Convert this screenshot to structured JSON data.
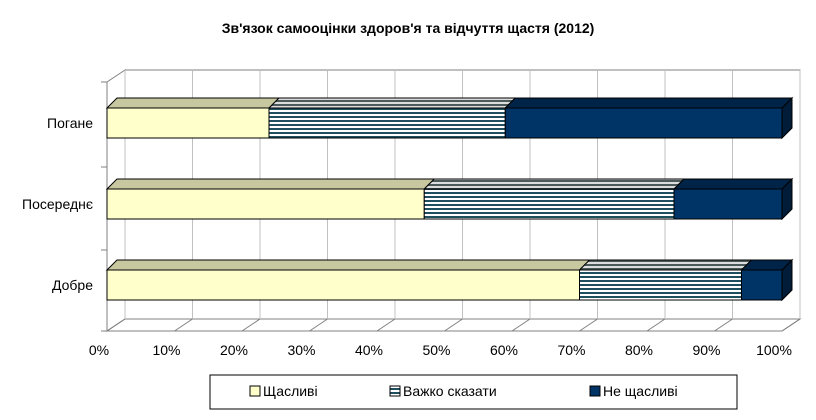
{
  "chart_data": {
    "type": "bar",
    "orientation": "horizontal",
    "stacked": true,
    "percent_stacked": true,
    "title": "Зв'язок самооцінки здоров'я та відчуття щастя (2012)",
    "categories": [
      "Погане",
      "Посереднє",
      "Добре"
    ],
    "series": [
      {
        "name": "Щасливі",
        "values": [
          24,
          47,
          70
        ],
        "color": "#ffffcc",
        "pattern": "solid"
      },
      {
        "name": "Важко сказати",
        "values": [
          35,
          37,
          24
        ],
        "color": "#ffffff",
        "pattern": "horizontal-stripes"
      },
      {
        "name": "Не щасливі",
        "values": [
          41,
          16,
          6
        ],
        "color": "#003366",
        "pattern": "solid"
      }
    ],
    "xticks": [
      "0%",
      "10%",
      "20%",
      "30%",
      "40%",
      "50%",
      "60%",
      "70%",
      "80%",
      "90%",
      "100%"
    ],
    "xlim": [
      0,
      100
    ],
    "grid": true,
    "style": "3d",
    "legend_position": "bottom"
  }
}
